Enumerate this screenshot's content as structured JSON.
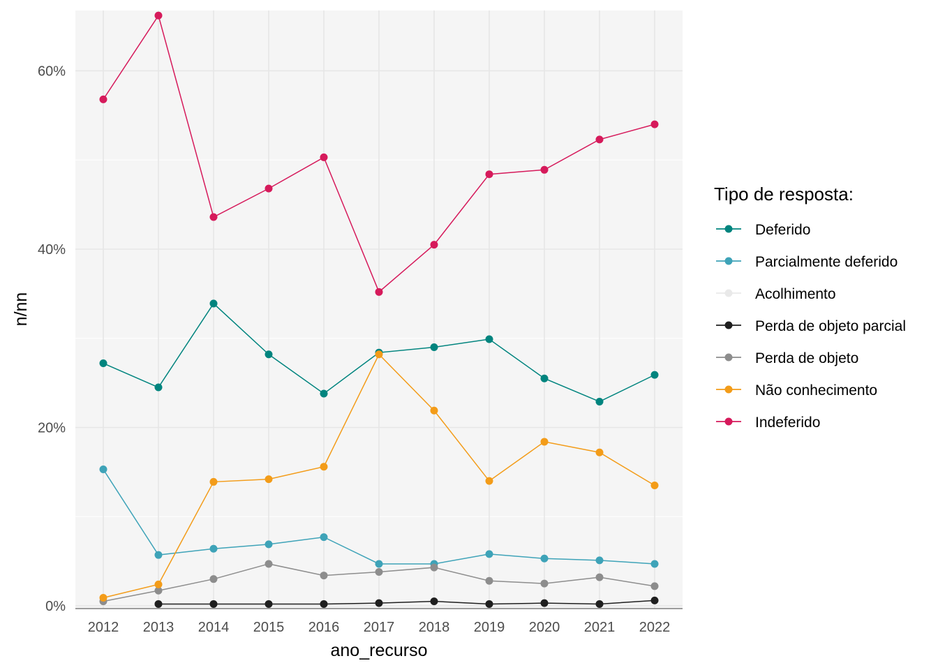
{
  "chart_data": {
    "type": "line",
    "xlabel": "ano_recurso",
    "ylabel": "n/nn",
    "x": [
      "2012",
      "2013",
      "2014",
      "2015",
      "2016",
      "2017",
      "2018",
      "2019",
      "2020",
      "2021",
      "2022"
    ],
    "ylim": [
      0,
      0.67
    ],
    "yticks": [
      0,
      0.2,
      0.4,
      0.6
    ],
    "ytick_labels": [
      "0%",
      "20%",
      "40%",
      "60%"
    ],
    "grid": true,
    "legend": {
      "title": "Tipo de resposta:",
      "placement": "right"
    },
    "series": [
      {
        "name": "Deferido",
        "color": "#00847e",
        "values": [
          0.272,
          0.245,
          0.339,
          0.282,
          0.238,
          0.284,
          0.29,
          0.299,
          0.255,
          0.229,
          0.259
        ]
      },
      {
        "name": "Parcialmente deferido",
        "color": "#3ea3b8",
        "values": [
          0.153,
          0.057,
          0.064,
          0.069,
          0.077,
          0.047,
          0.047,
          0.058,
          0.053,
          0.051,
          0.047
        ]
      },
      {
        "name": "Acolhimento",
        "color": "#e9e9e9",
        "values": [
          null,
          null,
          null,
          null,
          null,
          null,
          null,
          null,
          null,
          null,
          null
        ]
      },
      {
        "name": "Perda de objeto parcial",
        "color": "#1f1f1f",
        "values": [
          null,
          0.002,
          0.002,
          0.002,
          0.002,
          0.003,
          0.005,
          0.002,
          0.003,
          0.002,
          0.006
        ]
      },
      {
        "name": "Perda de objeto",
        "color": "#8d8d8d",
        "values": [
          0.005,
          0.017,
          0.03,
          0.047,
          0.034,
          0.038,
          0.043,
          0.028,
          0.025,
          0.032,
          0.022
        ]
      },
      {
        "name": "Não conhecimento",
        "color": "#f39c19",
        "values": [
          0.009,
          0.024,
          0.139,
          0.142,
          0.156,
          0.282,
          0.219,
          0.14,
          0.184,
          0.172,
          0.135
        ]
      },
      {
        "name": "Indeferido",
        "color": "#d61a5b",
        "values": [
          0.568,
          0.662,
          0.436,
          0.468,
          0.503,
          0.352,
          0.405,
          0.484,
          0.489,
          0.523,
          0.54
        ]
      }
    ]
  }
}
